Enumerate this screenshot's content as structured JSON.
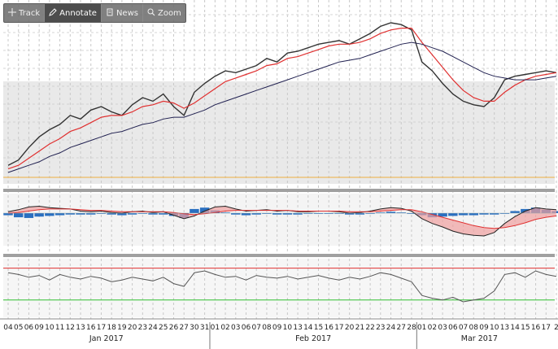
{
  "toolbar": {
    "items": [
      {
        "label": "Track",
        "icon": "crosshair-icon"
      },
      {
        "label": "Annotate",
        "icon": "pencil-icon",
        "active": true
      },
      {
        "label": "News",
        "icon": "news-icon"
      },
      {
        "label": "Zoom",
        "icon": "magnifier-icon"
      }
    ]
  },
  "colors": {
    "price": "#333333",
    "ema_fast": "#e03030",
    "ema_slow": "#202050",
    "macd_hist": "#2a6fc0",
    "macd_fill_red": "#f0a0a0",
    "osc_line": "#555555",
    "osc_upper": "#e03030",
    "osc_lower": "#30c030",
    "band_fill": "#e9e9e9",
    "separator": "#a0a0a0",
    "level_line": "#f0b040"
  },
  "chart_data": {
    "type": "line",
    "grid": true,
    "x_day_labels": [
      "04",
      "05",
      "06",
      "09",
      "10",
      "11",
      "12",
      "13",
      "16",
      "17",
      "18",
      "19",
      "20",
      "23",
      "24",
      "25",
      "26",
      "27",
      "30",
      "31",
      "01",
      "02",
      "03",
      "06",
      "07",
      "08",
      "09",
      "10",
      "13",
      "14",
      "15",
      "16",
      "17",
      "20",
      "21",
      "22",
      "23",
      "24",
      "27",
      "28",
      "01",
      "02",
      "03",
      "06",
      "07",
      "08",
      "09",
      "10",
      "13",
      "14",
      "15",
      "16",
      "17",
      "2"
    ],
    "month_labels": [
      "Jan 2017",
      "Feb 2017",
      "Mar 2017"
    ],
    "price_series": [
      {
        "name": "price",
        "values": [
          1.002,
          1.005,
          1.012,
          1.018,
          1.022,
          1.025,
          1.03,
          1.028,
          1.033,
          1.035,
          1.032,
          1.03,
          1.036,
          1.04,
          1.038,
          1.042,
          1.035,
          1.03,
          1.043,
          1.048,
          1.052,
          1.055,
          1.054,
          1.056,
          1.058,
          1.062,
          1.06,
          1.065,
          1.066,
          1.068,
          1.07,
          1.071,
          1.072,
          1.07,
          1.073,
          1.076,
          1.08,
          1.082,
          1.081,
          1.078,
          1.06,
          1.055,
          1.048,
          1.042,
          1.038,
          1.036,
          1.035,
          1.04,
          1.05,
          1.052,
          1.053,
          1.054,
          1.055,
          1.054
        ]
      },
      {
        "name": "ema_fast",
        "values": [
          1.0,
          1.002,
          1.006,
          1.01,
          1.014,
          1.017,
          1.021,
          1.023,
          1.026,
          1.029,
          1.03,
          1.03,
          1.032,
          1.035,
          1.036,
          1.038,
          1.037,
          1.034,
          1.037,
          1.041,
          1.045,
          1.049,
          1.051,
          1.053,
          1.055,
          1.058,
          1.059,
          1.062,
          1.063,
          1.065,
          1.067,
          1.069,
          1.07,
          1.07,
          1.071,
          1.073,
          1.076,
          1.078,
          1.079,
          1.079,
          1.071,
          1.064,
          1.057,
          1.05,
          1.044,
          1.04,
          1.038,
          1.038,
          1.043,
          1.047,
          1.05,
          1.052,
          1.053,
          1.054
        ]
      },
      {
        "name": "ema_slow",
        "values": [
          0.998,
          1.0,
          1.002,
          1.004,
          1.007,
          1.009,
          1.012,
          1.014,
          1.016,
          1.018,
          1.02,
          1.021,
          1.023,
          1.025,
          1.026,
          1.028,
          1.029,
          1.029,
          1.031,
          1.033,
          1.036,
          1.038,
          1.04,
          1.042,
          1.044,
          1.046,
          1.048,
          1.05,
          1.052,
          1.054,
          1.056,
          1.058,
          1.06,
          1.061,
          1.062,
          1.064,
          1.066,
          1.068,
          1.07,
          1.071,
          1.07,
          1.068,
          1.066,
          1.063,
          1.06,
          1.057,
          1.054,
          1.052,
          1.051,
          1.05,
          1.05,
          1.05,
          1.051,
          1.052
        ]
      }
    ],
    "macd": {
      "macd": [
        0.2,
        0.5,
        0.9,
        1.0,
        0.8,
        0.7,
        0.6,
        0.3,
        0.2,
        0.3,
        0.1,
        0.0,
        0.2,
        0.3,
        0.1,
        0.2,
        -0.3,
        -0.8,
        -0.4,
        0.3,
        0.9,
        1.0,
        0.6,
        0.3,
        0.4,
        0.5,
        0.3,
        0.4,
        0.2,
        0.2,
        0.3,
        0.3,
        0.2,
        0.0,
        0.1,
        0.3,
        0.6,
        0.8,
        0.7,
        0.3,
        -0.8,
        -1.5,
        -2.0,
        -2.6,
        -3.0,
        -3.2,
        -3.3,
        -2.8,
        -1.5,
        -0.5,
        0.3,
        0.8,
        0.6,
        0.5
      ],
      "signal": [
        0.0,
        0.1,
        0.3,
        0.5,
        0.6,
        0.6,
        0.6,
        0.5,
        0.4,
        0.4,
        0.3,
        0.2,
        0.2,
        0.2,
        0.2,
        0.2,
        0.1,
        -0.1,
        -0.2,
        -0.1,
        0.1,
        0.3,
        0.4,
        0.4,
        0.4,
        0.4,
        0.4,
        0.4,
        0.3,
        0.3,
        0.3,
        0.3,
        0.3,
        0.2,
        0.2,
        0.2,
        0.3,
        0.4,
        0.5,
        0.5,
        0.2,
        -0.2,
        -0.6,
        -1.0,
        -1.4,
        -1.8,
        -2.1,
        -2.2,
        -2.1,
        -1.8,
        -1.4,
        -0.9,
        -0.6,
        -0.4
      ],
      "hist": [
        -0.3,
        -0.6,
        -0.7,
        -0.5,
        -0.4,
        -0.3,
        -0.2,
        -0.2,
        -0.2,
        -0.1,
        -0.2,
        -0.3,
        -0.2,
        -0.1,
        -0.2,
        -0.2,
        -0.4,
        -0.7,
        0.6,
        0.8,
        0.4,
        0.1,
        -0.2,
        -0.3,
        -0.2,
        -0.1,
        -0.2,
        -0.2,
        -0.2,
        -0.1,
        -0.1,
        -0.1,
        -0.1,
        -0.2,
        -0.2,
        -0.1,
        0.1,
        0.2,
        0.1,
        -0.1,
        -0.3,
        -0.6,
        -0.5,
        -0.4,
        -0.3,
        -0.3,
        -0.2,
        -0.2,
        -0.1,
        0.3,
        0.6,
        0.8,
        0.5,
        0.3
      ]
    },
    "oscillator": {
      "values": [
        60,
        58,
        55,
        57,
        52,
        58,
        55,
        53,
        56,
        54,
        50,
        52,
        55,
        53,
        51,
        55,
        48,
        45,
        60,
        62,
        58,
        55,
        56,
        52,
        57,
        55,
        54,
        56,
        53,
        55,
        57,
        54,
        52,
        55,
        53,
        56,
        60,
        58,
        54,
        50,
        35,
        32,
        30,
        33,
        28,
        30,
        32,
        40,
        58,
        60,
        55,
        62,
        58,
        56
      ],
      "upper": 65,
      "lower": 30
    }
  }
}
